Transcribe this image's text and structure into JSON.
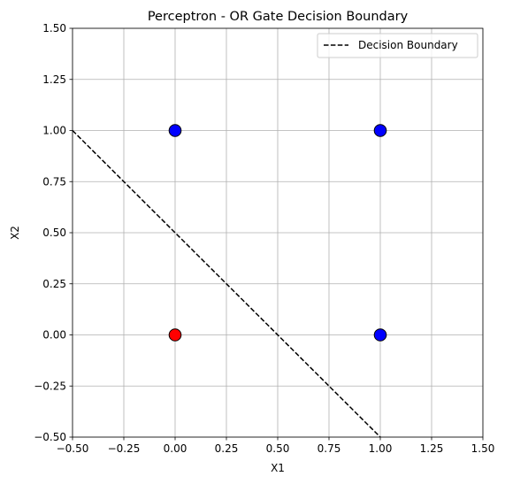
{
  "chart_data": {
    "type": "scatter",
    "title": "Perceptron - OR Gate Decision Boundary",
    "xlabel": "X1",
    "ylabel": "X2",
    "xlim": [
      -0.5,
      1.5
    ],
    "ylim": [
      -0.5,
      1.5
    ],
    "xticks": [
      -0.5,
      -0.25,
      0.0,
      0.25,
      0.5,
      0.75,
      1.0,
      1.25,
      1.5
    ],
    "yticks": [
      -0.5,
      -0.25,
      0.0,
      0.25,
      0.5,
      0.75,
      1.0,
      1.25,
      1.5
    ],
    "xtick_labels": [
      "−0.50",
      "−0.25",
      "0.00",
      "0.25",
      "0.50",
      "0.75",
      "1.00",
      "1.25",
      "1.50"
    ],
    "ytick_labels": [
      "−0.50",
      "−0.25",
      "0.00",
      "0.25",
      "0.50",
      "0.75",
      "1.00",
      "1.25",
      "1.50"
    ],
    "grid": true,
    "points": [
      {
        "x": 0,
        "y": 0,
        "color": "#ff0000"
      },
      {
        "x": 0,
        "y": 1,
        "color": "#0000ff"
      },
      {
        "x": 1,
        "y": 0,
        "color": "#0000ff"
      },
      {
        "x": 1,
        "y": 1,
        "color": "#0000ff"
      }
    ],
    "lines": [
      {
        "name": "Decision Boundary",
        "style": "dashed",
        "color": "#000000",
        "x": [
          -0.5,
          1.0
        ],
        "y": [
          1.0,
          -0.5
        ]
      }
    ],
    "legend": {
      "placement": "top-right",
      "entries": [
        "Decision Boundary"
      ]
    }
  }
}
